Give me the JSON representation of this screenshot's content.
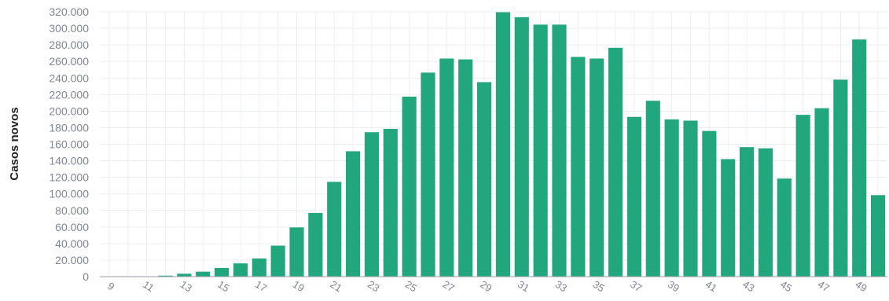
{
  "chart_data": {
    "type": "bar",
    "title": "",
    "xlabel": "",
    "ylabel": "Casos novos",
    "ylim": [
      0,
      320000
    ],
    "y_ticks": [
      0,
      20000,
      40000,
      60000,
      80000,
      100000,
      120000,
      140000,
      160000,
      180000,
      200000,
      220000,
      240000,
      260000,
      280000,
      300000,
      320000
    ],
    "y_tick_labels": [
      "0",
      "20.000",
      "40.000",
      "60.000",
      "80.000",
      "100.000",
      "120.000",
      "140.000",
      "160.000",
      "180.000",
      "200.000",
      "220.000",
      "240.000",
      "260.000",
      "280.000",
      "300.000",
      "320.000"
    ],
    "grid": true,
    "bar_color": "#21a67e",
    "categories": [
      9,
      10,
      11,
      12,
      13,
      14,
      15,
      16,
      17,
      18,
      19,
      20,
      21,
      22,
      23,
      24,
      25,
      26,
      27,
      28,
      29,
      30,
      31,
      32,
      33,
      34,
      35,
      36,
      37,
      38,
      39,
      40,
      41,
      42,
      43,
      44,
      45,
      46,
      47,
      48,
      49,
      50
    ],
    "x_tick_labels": [
      "9",
      "11",
      "13",
      "15",
      "17",
      "19",
      "21",
      "23",
      "25",
      "27",
      "29",
      "31",
      "33",
      "35",
      "37",
      "39",
      "41",
      "43",
      "45",
      "47",
      "49"
    ],
    "values": [
      0,
      0,
      200,
      1200,
      3500,
      6000,
      10500,
      16000,
      22000,
      37500,
      59500,
      77000,
      114500,
      151500,
      174500,
      178500,
      217500,
      246500,
      263500,
      262500,
      235000,
      319500,
      313500,
      304500,
      304500,
      265500,
      263500,
      276500,
      193000,
      212500,
      190000,
      188500,
      176000,
      142000,
      156500,
      155000,
      118500,
      195500,
      203500,
      238000,
      286500,
      98500
    ]
  }
}
